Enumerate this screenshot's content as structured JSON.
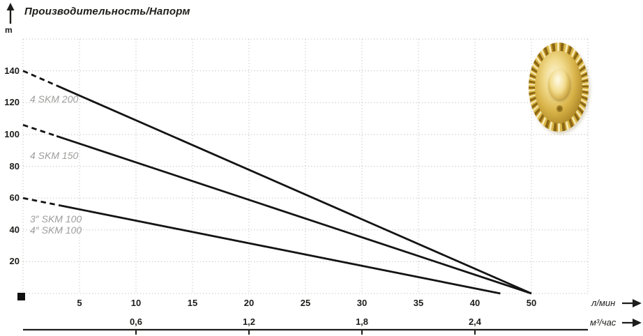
{
  "header": {
    "title": "Производительность/Напорм",
    "y_axis_unit": "m"
  },
  "axes": {
    "x_unit_primary": "л/мин",
    "x_unit_secondary": "м³/час"
  },
  "chart_data": {
    "type": "line",
    "title": "Производительность/Напорм",
    "ylabel": "m",
    "xlabel_primary": "л/мин",
    "xlabel_secondary": "м³/час",
    "ylim": [
      0,
      160
    ],
    "y_ticks": {
      "values": [
        20,
        40,
        60,
        80,
        100,
        120,
        140
      ],
      "labels": [
        "20",
        "40",
        "60",
        "80",
        "100",
        "120",
        "140"
      ]
    },
    "x_ticks": {
      "values": [
        5,
        10,
        15,
        20,
        25,
        30,
        35,
        40,
        50
      ],
      "labels": [
        "5",
        "10",
        "15",
        "20",
        "25",
        "30",
        "35",
        "40",
        "50"
      ]
    },
    "x_secondary_ticks": [
      {
        "label": "0,6",
        "at_lpm": 10
      },
      {
        "label": "1,2",
        "at_lpm": 20
      },
      {
        "label": "1,8",
        "at_lpm": 30
      },
      {
        "label": "2,4",
        "at_lpm": 40
      }
    ],
    "grid": "dotted",
    "series": [
      {
        "name": "4 SKM 200",
        "points": [
          [
            0,
            140
          ],
          [
            50,
            0
          ]
        ],
        "dashed_until_x": 3.4
      },
      {
        "name": "4 SKM 150",
        "points": [
          [
            0,
            106
          ],
          [
            50,
            0
          ]
        ],
        "dashed_until_x": 3.3
      },
      {
        "name": "3″/4″ SKM 100",
        "points": [
          [
            0,
            60
          ],
          [
            44.5,
            0
          ]
        ],
        "dashed_until_x": 3.5
      }
    ],
    "series_labels": {
      "skm200": "4 SKM 200",
      "skm150": "4 SKM 150",
      "skm100_3": "3″ SKM 100",
      "skm100_4": "4″ SKM 100"
    },
    "colors": {
      "curve": "#141414",
      "grid": "#c8c8c8",
      "label_gray": "#9d9d9c",
      "text": "#1d1d1b"
    }
  }
}
